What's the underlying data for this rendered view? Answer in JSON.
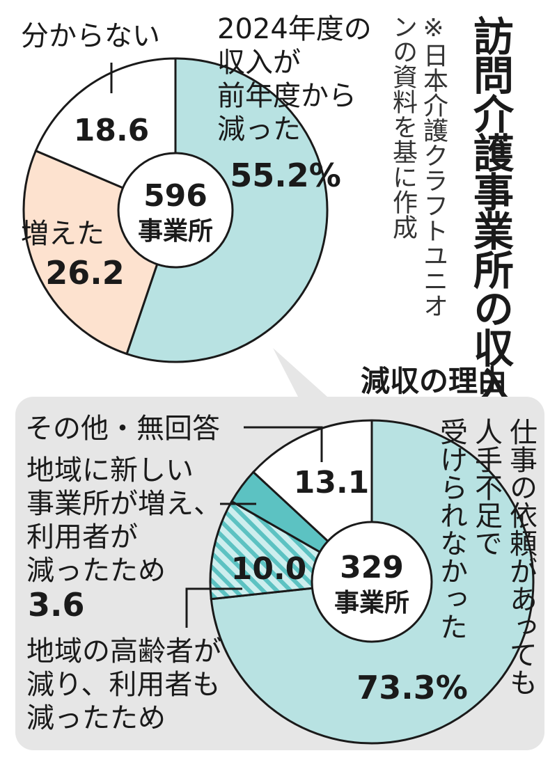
{
  "title": "訪問介護事業所の収入の増減",
  "note": "※日本介護クラフトユニオンの資料を基に作成",
  "chart_data": [
    {
      "type": "pie",
      "center_label": [
        "596",
        "事業所"
      ],
      "unit": "%",
      "slices": [
        {
          "label": "2024年度の収入が前年度から減った",
          "value": 55.2,
          "display": "55.2%",
          "color": "#b8e2e2"
        },
        {
          "label": "増えた",
          "value": 26.2,
          "display": "26.2",
          "color": "#fde2cf"
        },
        {
          "label": "分からない",
          "value": 18.6,
          "display": "18.6",
          "color": "#ffffff"
        }
      ]
    },
    {
      "type": "pie",
      "title": "減収の理由",
      "center_label": [
        "329",
        "事業所"
      ],
      "unit": "%",
      "slices": [
        {
          "label": "仕事の依頼があっても人手不足で受けられなかった",
          "value": 73.3,
          "display": "73.3%",
          "color": "#b8e2e2"
        },
        {
          "label": "地域の高齢者が減り、利用者も減ったため",
          "value": 10.0,
          "display": "10.0",
          "color": "#6ecaca",
          "pattern": "hatch"
        },
        {
          "label": "地域に新しい事業所が増え、利用者が減ったため",
          "value": 3.6,
          "display": "3.6",
          "color": "#5cc2c2"
        },
        {
          "label": "その他・無回答",
          "value": 13.1,
          "display": "13.1",
          "color": "#ffffff"
        }
      ]
    }
  ],
  "labels": {
    "dec_lines": [
      "2024年度の",
      "収入が",
      "前年度から",
      "減った"
    ],
    "inc": "増えた",
    "unknown": "分からない",
    "other": "その他・無回答",
    "newoffice_lines": [
      "地域に新しい",
      "事業所が増え、",
      "利用者が",
      "減ったため"
    ],
    "elderly_lines": [
      "地域の高齢者が",
      "減り、利用者も",
      "減ったため"
    ],
    "shortage_lines": [
      "仕事の依頼があっても",
      "人手不足で",
      "受けられなかった"
    ]
  }
}
